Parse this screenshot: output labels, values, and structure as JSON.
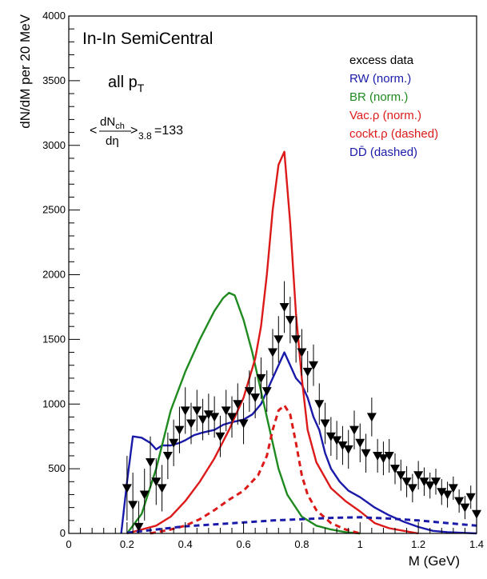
{
  "chart_data": {
    "type": "line",
    "title": "In-In SemiCentral",
    "annotations": {
      "pt_main": "all p",
      "pt_sub": "T",
      "mult_lt": "<",
      "mult_num": "dN",
      "mult_num_sub": "ch",
      "mult_den": "dη",
      "mult_gt": ">",
      "mult_sub": "3.8",
      "mult_value": "=133"
    },
    "xlabel": "M (GeV)",
    "ylabel": "dN/dM per 20 MeV",
    "xlim": [
      0,
      1.4
    ],
    "ylim": [
      0,
      4000
    ],
    "xticks": [
      0,
      0.2,
      0.4,
      0.6,
      0.8,
      1,
      1.2,
      1.4
    ],
    "xtick_labels": [
      "0",
      "0.2",
      "0.4",
      "0.6",
      "0.8",
      "1",
      "1.2",
      "1.4"
    ],
    "yticks": [
      0,
      500,
      1000,
      1500,
      2000,
      2500,
      3000,
      3500,
      4000
    ],
    "ytick_labels": [
      "0",
      "500",
      "1000",
      "1500",
      "2000",
      "2500",
      "3000",
      "3500",
      "4000"
    ],
    "legend_placement": "top-right",
    "legend": [
      {
        "label": "excess data",
        "color": "#000000"
      },
      {
        "label": "RW (norm.)",
        "color": "#1a1aaa"
      },
      {
        "label": "BR (norm.)",
        "color": "#1f8a1f"
      },
      {
        "label": "Vac.ρ (norm.)",
        "color": "#dd1a1a"
      },
      {
        "label": "cockt.ρ (dashed)",
        "color": "#dd1a1a"
      },
      {
        "label": "DD̄ (dashed)",
        "color": "#1a1aaa"
      }
    ],
    "series": [
      {
        "name": "RW (norm.)",
        "color": "#1a1aaa",
        "dash": false,
        "x": [
          0.18,
          0.2,
          0.22,
          0.25,
          0.28,
          0.3,
          0.32,
          0.35,
          0.38,
          0.4,
          0.43,
          0.46,
          0.5,
          0.53,
          0.56,
          0.6,
          0.63,
          0.66,
          0.68,
          0.7,
          0.72,
          0.74,
          0.76,
          0.78,
          0.8,
          0.82,
          0.84,
          0.86,
          0.88,
          0.9,
          0.93,
          0.96,
          1.0,
          1.05,
          1.1,
          1.15,
          1.2,
          1.25,
          1.3,
          1.35,
          1.4
        ],
        "y": [
          0,
          400,
          750,
          740,
          700,
          650,
          680,
          680,
          700,
          720,
          760,
          780,
          800,
          840,
          860,
          880,
          920,
          1000,
          1100,
          1200,
          1300,
          1400,
          1300,
          1200,
          1150,
          1050,
          900,
          800,
          620,
          500,
          400,
          330,
          280,
          200,
          140,
          90,
          50,
          20,
          10,
          5,
          0
        ]
      },
      {
        "name": "BR (norm.)",
        "color": "#1f8a1f",
        "dash": false,
        "x": [
          0.2,
          0.25,
          0.3,
          0.35,
          0.4,
          0.45,
          0.5,
          0.53,
          0.55,
          0.57,
          0.6,
          0.63,
          0.66,
          0.7,
          0.72,
          0.75,
          0.8,
          0.85,
          0.9,
          0.95,
          1.0
        ],
        "y": [
          0,
          150,
          500,
          950,
          1250,
          1500,
          1720,
          1820,
          1860,
          1840,
          1650,
          1400,
          1100,
          700,
          500,
          300,
          130,
          60,
          30,
          10,
          0
        ]
      },
      {
        "name": "Vac.ρ (norm.)",
        "color": "#dd1a1a",
        "dash": false,
        "x": [
          0.2,
          0.3,
          0.35,
          0.4,
          0.45,
          0.5,
          0.55,
          0.6,
          0.64,
          0.66,
          0.68,
          0.7,
          0.72,
          0.74,
          0.76,
          0.78,
          0.8,
          0.82,
          0.85,
          0.9,
          0.95,
          1.0,
          1.05,
          1.1,
          1.15,
          1.2
        ],
        "y": [
          0,
          60,
          130,
          250,
          400,
          580,
          800,
          1050,
          1350,
          1600,
          2000,
          2500,
          2850,
          2950,
          2400,
          1700,
          1200,
          800,
          550,
          350,
          250,
          170,
          80,
          40,
          20,
          0
        ]
      },
      {
        "name": "cockt.ρ (dashed)",
        "color": "#dd1a1a",
        "dash": true,
        "x": [
          0.28,
          0.35,
          0.4,
          0.45,
          0.5,
          0.55,
          0.6,
          0.65,
          0.68,
          0.7,
          0.72,
          0.74,
          0.76,
          0.78,
          0.8,
          0.82,
          0.85,
          0.9,
          0.95,
          1.0
        ],
        "y": [
          0,
          30,
          60,
          110,
          180,
          260,
          330,
          450,
          600,
          800,
          950,
          990,
          920,
          700,
          450,
          300,
          180,
          80,
          30,
          0
        ]
      },
      {
        "name": "DD̄ (dashed)",
        "color": "#1a1aaa",
        "dash": true,
        "x": [
          0.2,
          0.3,
          0.4,
          0.5,
          0.6,
          0.7,
          0.8,
          0.9,
          1.0,
          1.1,
          1.2,
          1.3,
          1.4
        ],
        "y": [
          5,
          30,
          55,
          70,
          85,
          100,
          110,
          120,
          125,
          115,
          100,
          80,
          60
        ]
      }
    ],
    "excess_data": {
      "name": "excess data",
      "x": [
        0.2,
        0.22,
        0.24,
        0.26,
        0.28,
        0.3,
        0.32,
        0.34,
        0.36,
        0.38,
        0.4,
        0.42,
        0.44,
        0.46,
        0.48,
        0.5,
        0.52,
        0.54,
        0.56,
        0.58,
        0.6,
        0.62,
        0.64,
        0.66,
        0.68,
        0.7,
        0.72,
        0.74,
        0.76,
        0.78,
        0.8,
        0.82,
        0.84,
        0.86,
        0.88,
        0.9,
        0.92,
        0.94,
        0.96,
        0.98,
        1.0,
        1.02,
        1.04,
        1.06,
        1.08,
        1.1,
        1.12,
        1.14,
        1.16,
        1.18,
        1.2,
        1.22,
        1.24,
        1.26,
        1.28,
        1.3,
        1.32,
        1.34,
        1.36,
        1.38,
        1.4
      ],
      "y": [
        350,
        220,
        50,
        300,
        550,
        400,
        350,
        600,
        700,
        800,
        950,
        850,
        950,
        880,
        920,
        900,
        750,
        950,
        900,
        1000,
        850,
        1100,
        1050,
        1200,
        1100,
        1400,
        1500,
        1750,
        1650,
        1500,
        1400,
        1250,
        1300,
        1000,
        850,
        750,
        720,
        680,
        650,
        800,
        700,
        620,
        900,
        600,
        580,
        600,
        500,
        450,
        400,
        350,
        450,
        400,
        370,
        400,
        320,
        300,
        350,
        250,
        200,
        280,
        150
      ],
      "err": [
        250,
        250,
        200,
        200,
        200,
        180,
        180,
        180,
        180,
        180,
        180,
        160,
        160,
        160,
        160,
        160,
        160,
        160,
        160,
        160,
        160,
        160,
        160,
        160,
        160,
        180,
        180,
        200,
        180,
        180,
        180,
        160,
        160,
        160,
        160,
        150,
        150,
        150,
        150,
        150,
        150,
        150,
        150,
        130,
        130,
        130,
        120,
        120,
        120,
        110,
        110,
        110,
        100,
        100,
        100,
        100,
        90,
        90,
        90,
        90,
        80
      ]
    }
  }
}
